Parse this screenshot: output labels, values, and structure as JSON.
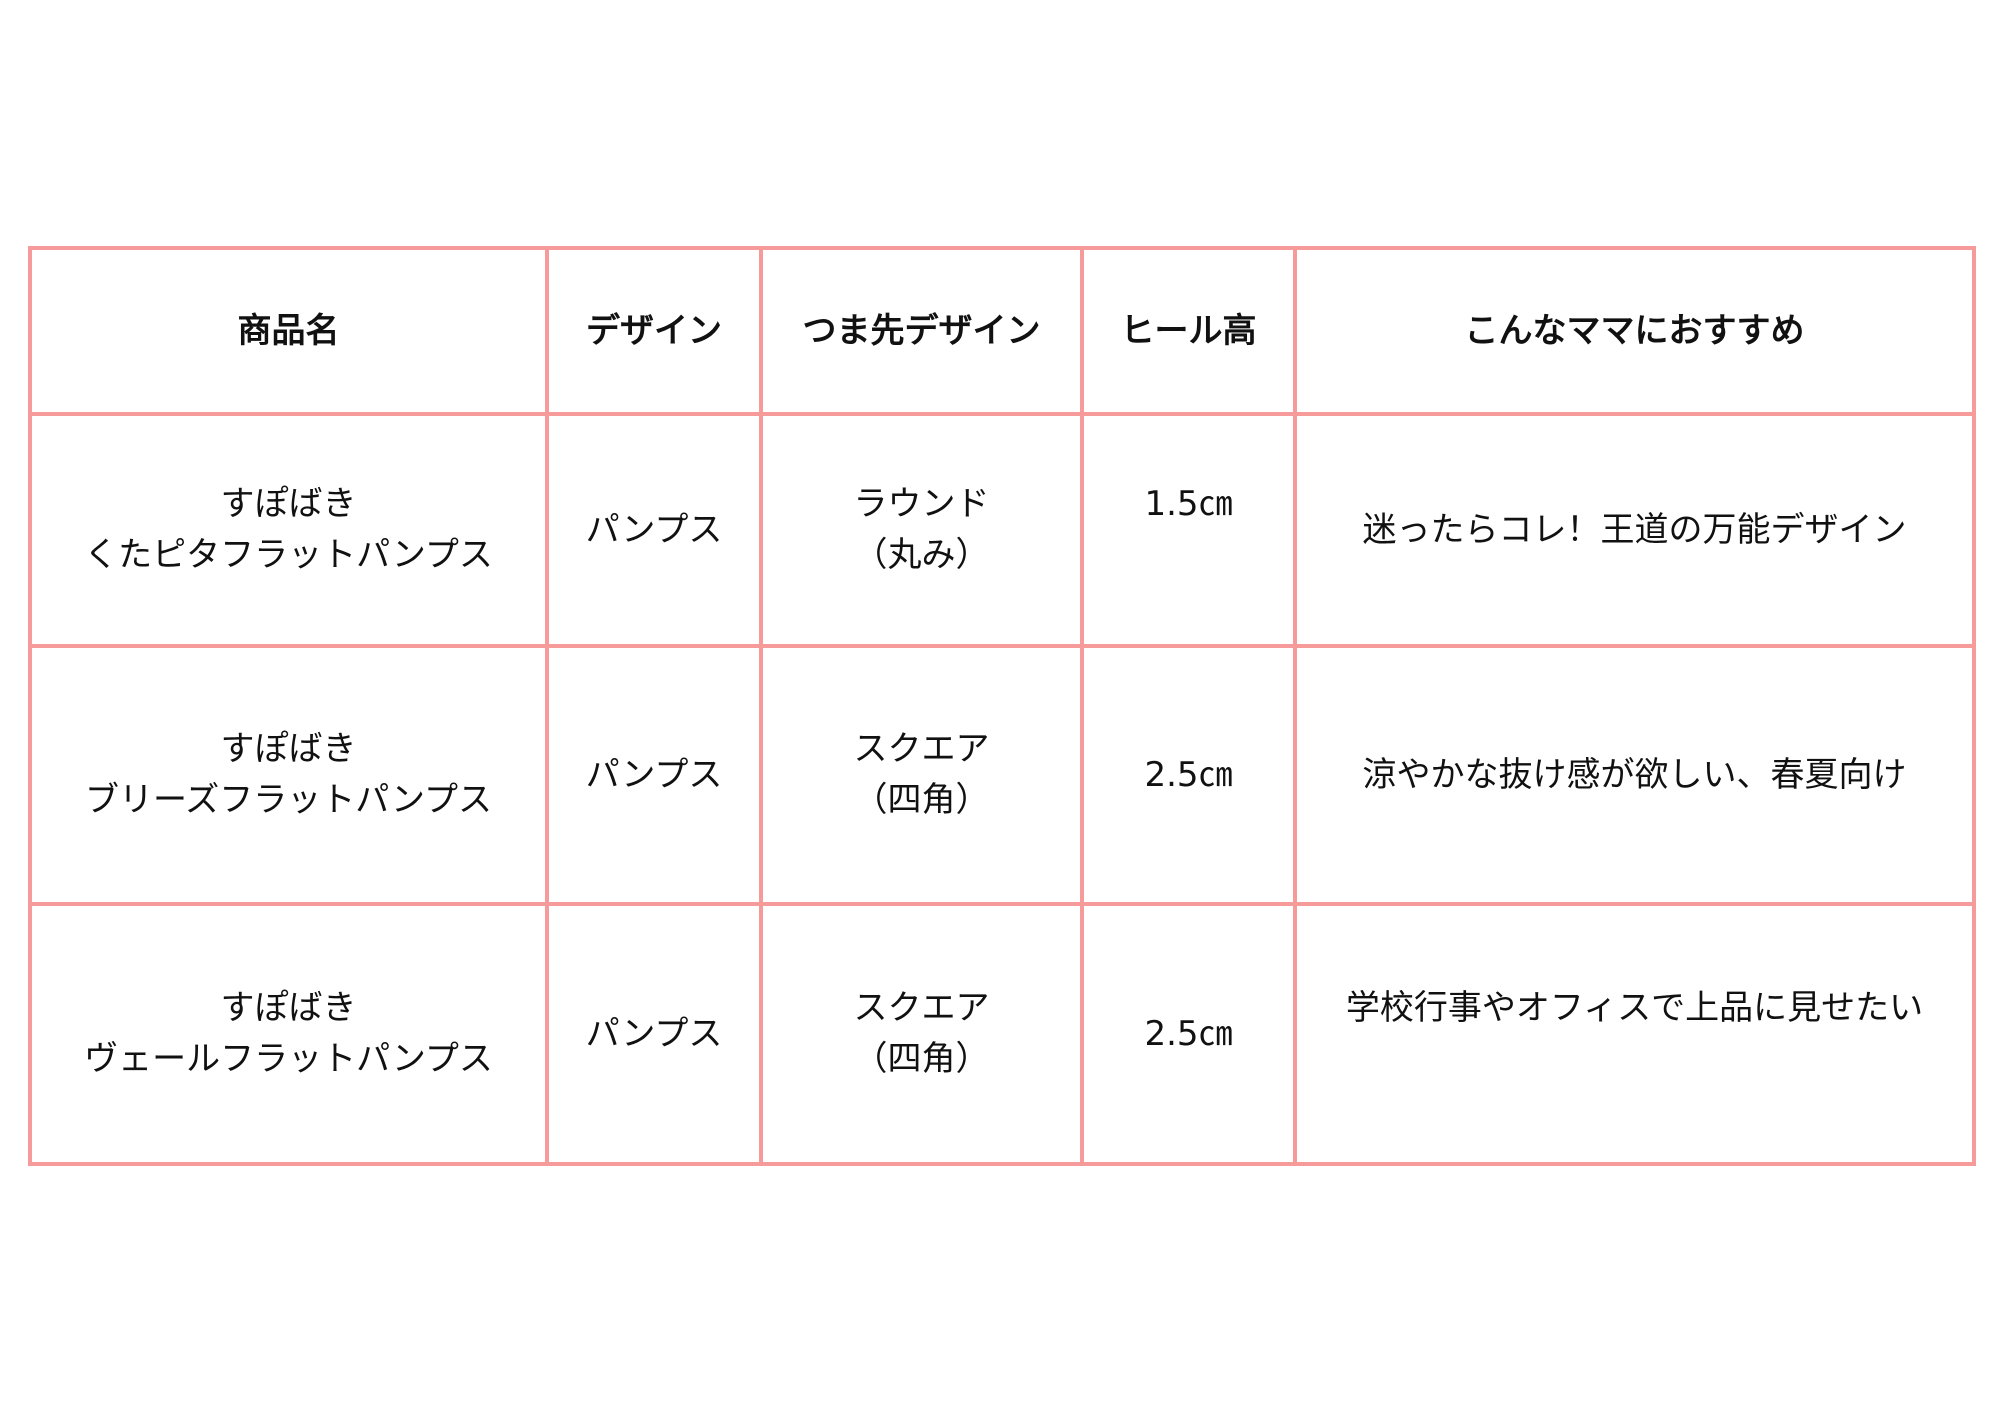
{
  "table": {
    "border_color": "#f79a9a",
    "headers": [
      "商品名",
      "デザイン",
      "つま先デザイン",
      "ヒール高",
      "こんなママにおすすめ"
    ],
    "rows": [
      {
        "name": [
          "すぽばき",
          "くたピタフラットパンプス"
        ],
        "design": "パンプス",
        "toe": [
          "ラウンド",
          "（丸み）"
        ],
        "heel": "1.5㎝",
        "recommend": "迷ったらコレ！王道の万能デザイン"
      },
      {
        "name": [
          "すぽばき",
          "ブリーズフラットパンプス"
        ],
        "design": "パンプス",
        "toe": [
          "スクエア",
          "（四角）"
        ],
        "heel": "2.5㎝",
        "recommend": "涼やかな抜け感が欲しい、春夏向け"
      },
      {
        "name": [
          "すぽばき",
          "ヴェールフラットパンプス"
        ],
        "design": "パンプス",
        "toe": [
          "スクエア",
          "（四角）"
        ],
        "heel": "2.5㎝",
        "recommend": "学校行事やオフィスで上品に見せたい"
      }
    ]
  }
}
